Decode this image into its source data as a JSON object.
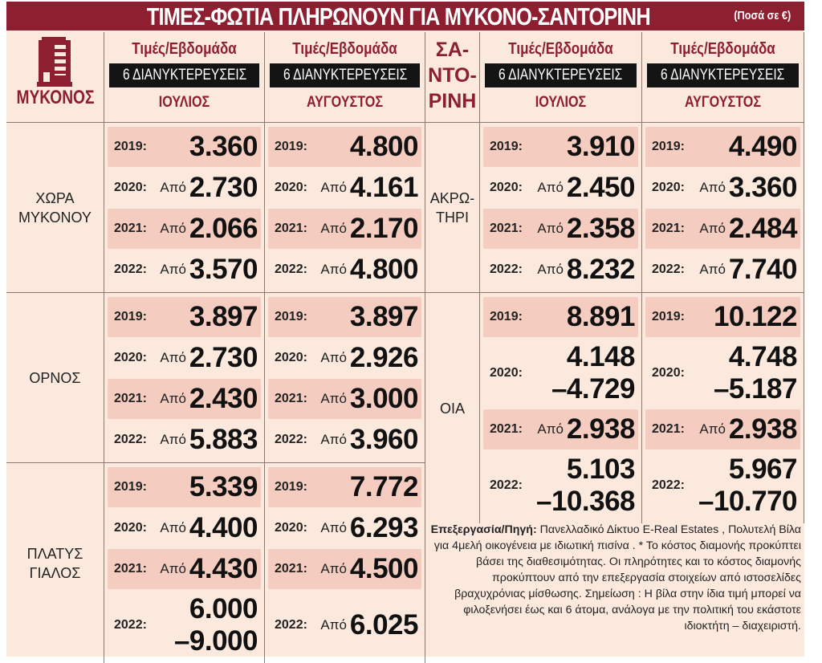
{
  "title": "ΤΙΜΕΣ-ΦΩΤΙΑ ΠΛΗΡΩΝΟΥΝ ΓΙΑ ΜΥΚΟΝΟ-ΣΑΝΤΟΡΙΝΗ",
  "units": "(Ποσά σε €)",
  "colors": {
    "accent": "#8d1f31",
    "background": "#fbe9de",
    "highlight_row": "#f5cdc0"
  },
  "icon": "building-icon",
  "mykonos": {
    "label": "ΜΥΚΟΝΟΣ",
    "columns": [
      {
        "title": "Τιμές/Εβδομάδα",
        "nights": "6 ΔΙΑΝΥΚΤΕΡΕΥΣΕΙΣ",
        "month": "ΙΟΥΛΙΟΣ"
      },
      {
        "title": "Τιμές/Εβδομάδα",
        "nights": "6 ΔΙΑΝΥΚΤΕΡΕΥΣΕΙΣ",
        "month": "ΑΥΓΟΥΣΤΟΣ"
      }
    ],
    "groups": [
      {
        "label": "ΧΩΡΑ ΜΥΚΟΝΟΥ",
        "rows": [
          {
            "year": "2019:",
            "jul": {
              "prefix": "",
              "lines": [
                "3.360"
              ]
            },
            "aug": {
              "prefix": "",
              "lines": [
                "4.800"
              ]
            }
          },
          {
            "year": "2020:",
            "jul": {
              "prefix": "Από",
              "lines": [
                "2.730"
              ]
            },
            "aug": {
              "prefix": "Από",
              "lines": [
                "4.161"
              ]
            }
          },
          {
            "year": "2021:",
            "jul": {
              "prefix": "Από",
              "lines": [
                "2.066"
              ]
            },
            "aug": {
              "prefix": "Από",
              "lines": [
                "2.170"
              ]
            }
          },
          {
            "year": "2022:",
            "jul": {
              "prefix": "Από",
              "lines": [
                "3.570"
              ]
            },
            "aug": {
              "prefix": "Από",
              "lines": [
                "4.800"
              ]
            }
          }
        ]
      },
      {
        "label": "ΟΡΝΟΣ",
        "rows": [
          {
            "year": "2019:",
            "jul": {
              "prefix": "",
              "lines": [
                "3.897"
              ]
            },
            "aug": {
              "prefix": "",
              "lines": [
                "3.897"
              ]
            }
          },
          {
            "year": "2020:",
            "jul": {
              "prefix": "Από",
              "lines": [
                "2.730"
              ]
            },
            "aug": {
              "prefix": "Από",
              "lines": [
                "2.926"
              ]
            }
          },
          {
            "year": "2021:",
            "jul": {
              "prefix": "Από",
              "lines": [
                "2.430"
              ]
            },
            "aug": {
              "prefix": "Από",
              "lines": [
                "3.000"
              ]
            }
          },
          {
            "year": "2022:",
            "jul": {
              "prefix": "Από",
              "lines": [
                "5.883"
              ]
            },
            "aug": {
              "prefix": "Από",
              "lines": [
                "3.960"
              ]
            }
          }
        ]
      },
      {
        "label": "ΠΛΑΤΥΣ ΓΙΑΛΟΣ",
        "rows": [
          {
            "year": "2019:",
            "jul": {
              "prefix": "",
              "lines": [
                "5.339"
              ]
            },
            "aug": {
              "prefix": "",
              "lines": [
                "7.772"
              ]
            }
          },
          {
            "year": "2020:",
            "jul": {
              "prefix": "Από",
              "lines": [
                "4.400"
              ]
            },
            "aug": {
              "prefix": "Από",
              "lines": [
                "6.293"
              ]
            }
          },
          {
            "year": "2021:",
            "jul": {
              "prefix": "Από",
              "lines": [
                "4.430"
              ]
            },
            "aug": {
              "prefix": "Από",
              "lines": [
                "4.500"
              ]
            }
          },
          {
            "year": "2022:",
            "jul": {
              "prefix": "",
              "lines": [
                "6.000",
                "–9.000"
              ]
            },
            "aug": {
              "prefix": "Από",
              "lines": [
                "6.025"
              ]
            }
          }
        ]
      }
    ]
  },
  "santorini": {
    "label": "ΣΑ- ΝΤΟ- ΡΙΝΗ",
    "columns": [
      {
        "title": "Τιμές/Εβδομάδα",
        "nights": "6 ΔΙΑΝΥΚΤΕΡΕΥΣΕΙΣ",
        "month": "ΙΟΥΛΙΟΣ"
      },
      {
        "title": "Τιμές/Εβδομάδα",
        "nights": "6 ΔΙΑΝΥΚΤΕΡΕΥΣΕΙΣ",
        "month": "ΑΥΓΟΥΣΤΟΣ"
      }
    ],
    "groups": [
      {
        "label": "ΑΚΡΩ- ΤΗΡΙ",
        "rows": [
          {
            "year": "2019:",
            "jul": {
              "prefix": "",
              "lines": [
                "3.910"
              ]
            },
            "aug": {
              "prefix": "",
              "lines": [
                "4.490"
              ]
            }
          },
          {
            "year": "2020:",
            "jul": {
              "prefix": "Από",
              "lines": [
                "2.450"
              ]
            },
            "aug": {
              "prefix": "Από",
              "lines": [
                "3.360"
              ]
            }
          },
          {
            "year": "2021:",
            "jul": {
              "prefix": "Από",
              "lines": [
                "2.358"
              ]
            },
            "aug": {
              "prefix": "Από",
              "lines": [
                "2.484"
              ]
            }
          },
          {
            "year": "2022:",
            "jul": {
              "prefix": "Από",
              "lines": [
                "8.232"
              ]
            },
            "aug": {
              "prefix": "Από",
              "lines": [
                "7.740"
              ]
            }
          }
        ]
      },
      {
        "label": "ΟΙΑ",
        "rows": [
          {
            "year": "2019:",
            "jul": {
              "prefix": "",
              "lines": [
                "8.891"
              ]
            },
            "aug": {
              "prefix": "",
              "lines": [
                "10.122"
              ]
            }
          },
          {
            "year": "2020:",
            "jul": {
              "prefix": "",
              "lines": [
                "4.148",
                "–4.729"
              ]
            },
            "aug": {
              "prefix": "",
              "lines": [
                "4.748",
                "–5.187"
              ]
            }
          },
          {
            "year": "2021:",
            "jul": {
              "prefix": "Από",
              "lines": [
                "2.938"
              ]
            },
            "aug": {
              "prefix": "Από",
              "lines": [
                "2.938"
              ]
            }
          },
          {
            "year": "2022:",
            "jul": {
              "prefix": "",
              "lines": [
                "5.103",
                "–10.368"
              ]
            },
            "aug": {
              "prefix": "",
              "lines": [
                "5.967",
                "–10.770"
              ]
            }
          }
        ]
      }
    ]
  },
  "note": {
    "label": "Επεξεργασία/Πηγή:",
    "text": "Πανελλαδικό Δίκτυο E-Real Estates , Πολυτελή Βίλα για 4μελή οικογένεια με ιδιωτική πισίνα . * Το κόστος διαμονής προκύπτει βάσει της διαθεσιμότητας. Οι πληρότητες και το κόστος διαμονής προκύπτουν από την επεξεργασία στοιχείων από ιστοσελίδες βραχυχρόνιας μίσθωσης.  Σημείωση : Η βίλα στην ίδια τιμή μπορεί να φιλοξενήσει έως και 6 άτομα, ανάλογα με την πολιτική του εκάστοτε ιδιοκτήτη – διαχειριστή."
  }
}
